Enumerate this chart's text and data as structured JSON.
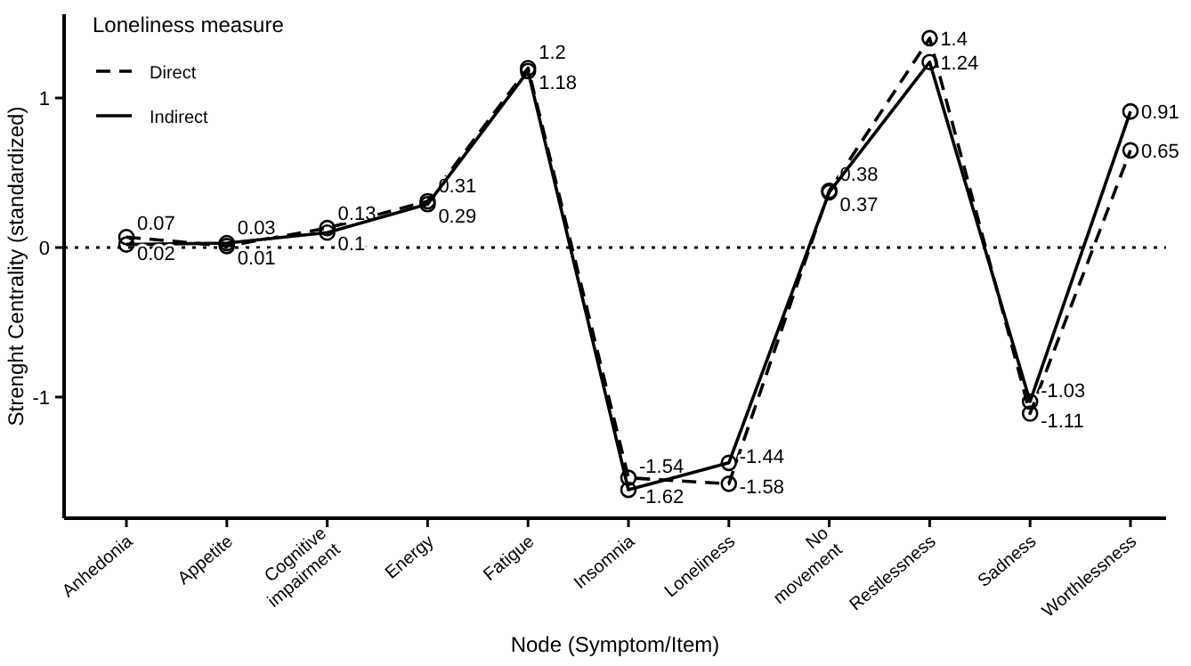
{
  "chart_data": {
    "type": "line",
    "xlabel": "Node (Symptom/Item)",
    "ylabel": "Strenght Centrality (standardized)",
    "legend_title": "Loneliness measure",
    "categories": [
      "Anhedonia",
      "Appetite",
      "Cognitive impairment",
      "Energy",
      "Fatigue",
      "Insomnia",
      "Loneliness",
      "No movement",
      "Restlessness",
      "Sadness",
      "Worthlessness"
    ],
    "series": [
      {
        "name": "Direct",
        "color": "#000000",
        "line_style": "dashed",
        "values": [
          0.07,
          0.01,
          0.13,
          0.31,
          1.2,
          -1.54,
          -1.58,
          0.38,
          1.4,
          -1.11,
          0.65
        ]
      },
      {
        "name": "Indirect",
        "color": "#000000",
        "line_style": "solid",
        "values": [
          0.02,
          0.03,
          0.1,
          0.29,
          1.18,
          -1.62,
          -1.44,
          0.37,
          1.24,
          -1.03,
          0.91
        ]
      }
    ],
    "ylim": [
      -1.81,
      1.56
    ],
    "yticks": [
      -1,
      0,
      1
    ],
    "marker": "circle",
    "data_labels": true,
    "legend": "top left",
    "grid": false,
    "ref_lines": [
      {
        "axis": "y",
        "value": 0,
        "line_style": "dotted",
        "color": "#000000"
      }
    ]
  }
}
